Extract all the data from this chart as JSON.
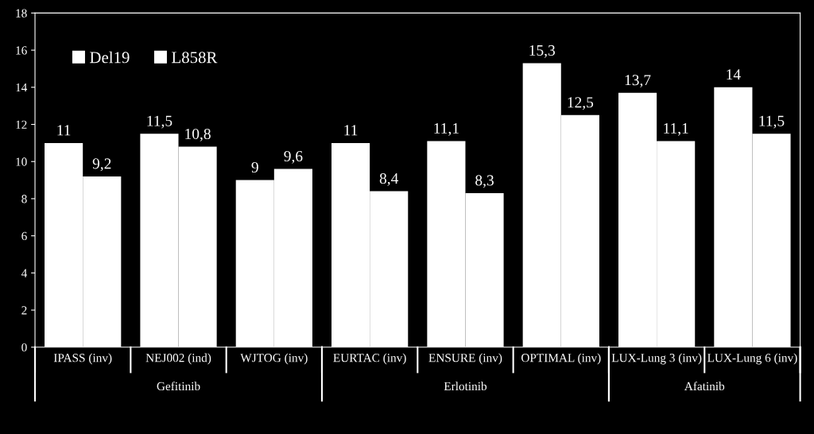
{
  "chart_data": {
    "type": "bar",
    "categories": [
      "IPASS (inv)",
      "NEJ002 (ind)",
      "WJTOG (inv)",
      "EURTAC (inv)",
      "ENSURE (inv)",
      "OPTIMAL (inv)",
      "LUX-Lung 3 (inv)",
      "LUX-Lung 6 (inv)"
    ],
    "series": [
      {
        "name": "Del19",
        "color": "#ffffff",
        "values": [
          11,
          11.5,
          9,
          11,
          11.1,
          15.3,
          13.7,
          14
        ],
        "value_labels": [
          "11",
          "11,5",
          "9",
          "11",
          "11,1",
          "15,3",
          "13,7",
          "14"
        ]
      },
      {
        "name": "L858R",
        "color": "#ffffff",
        "values": [
          9.2,
          10.8,
          9.6,
          8.4,
          8.3,
          12.5,
          11.1,
          11.5
        ],
        "value_labels": [
          "9,2",
          "10,8",
          "9,6",
          "8,4",
          "8,3",
          "12,5",
          "11,1",
          "11,5"
        ]
      }
    ],
    "ylim": [
      0,
      18
    ],
    "yticks": [
      0,
      2,
      4,
      6,
      8,
      10,
      12,
      14,
      16,
      18
    ],
    "legend": "top left",
    "annotations": [
      "Gefitinib",
      "Erlotinib",
      "Afatinib"
    ]
  }
}
